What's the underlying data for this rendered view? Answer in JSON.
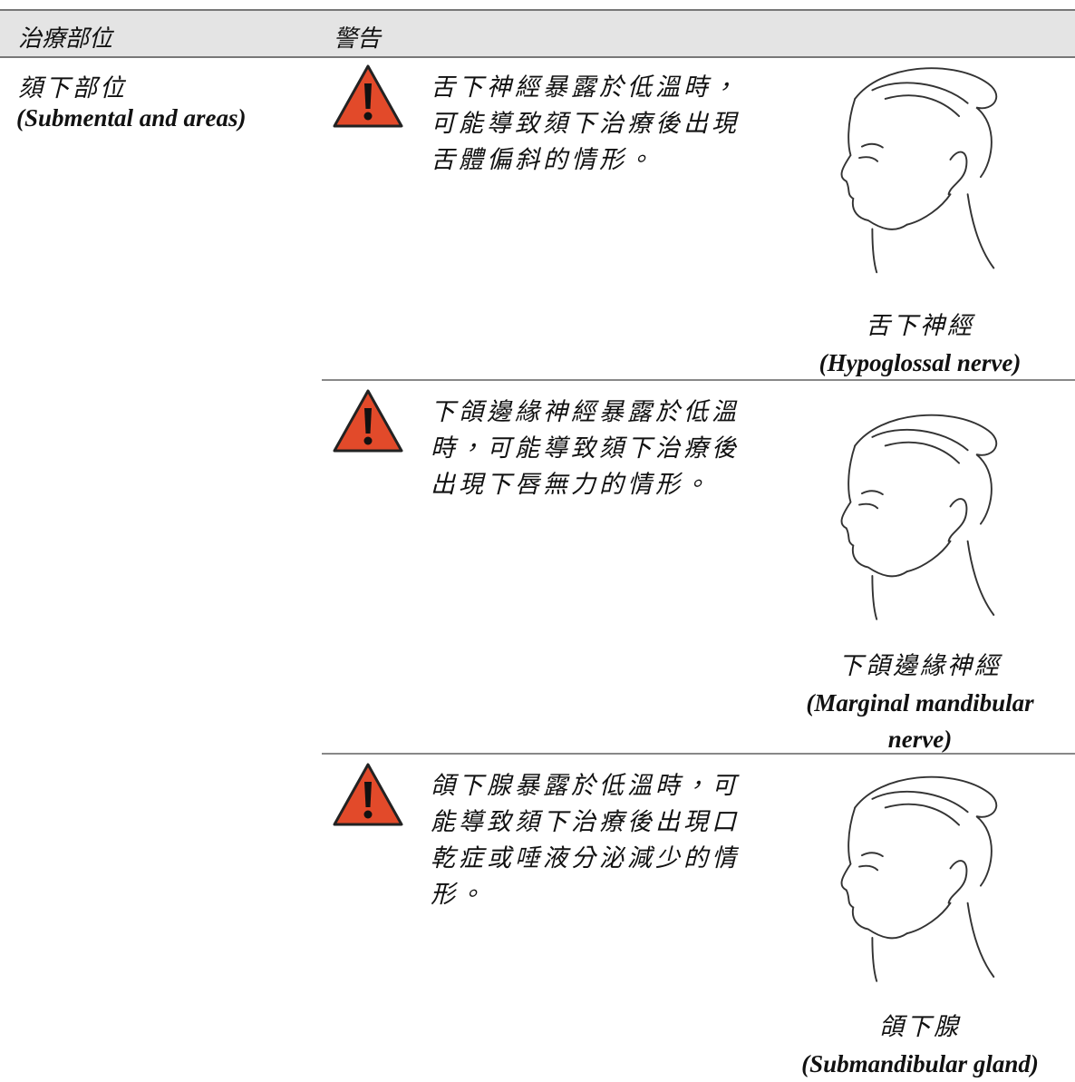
{
  "header": {
    "area": "治療部位",
    "warning": "警告"
  },
  "area": {
    "zh": "頦下部位",
    "en": "(Submental and areas)"
  },
  "warnings": [
    {
      "lines": [
        "舌下神經暴露於低溫時，",
        "可能導致頦下治療後出現",
        "舌體偏斜的情形。"
      ],
      "caption_zh": "舌下神經",
      "caption_en": "(Hypoglossal nerve)"
    },
    {
      "lines": [
        "下頜邊緣神經暴露於低溫",
        "時，可能導致頦下治療後",
        "出現下唇無力的情形。"
      ],
      "caption_zh": "下頜邊緣神經",
      "caption_en": "(Marginal mandibular nerve)"
    },
    {
      "lines": [
        "頜下腺暴露於低溫時，可",
        "能導致頦下治療後出現口",
        "乾症或唾液分泌減少的情",
        "形。"
      ],
      "caption_zh": "頜下腺",
      "caption_en": "(Submandibular gland)"
    }
  ]
}
